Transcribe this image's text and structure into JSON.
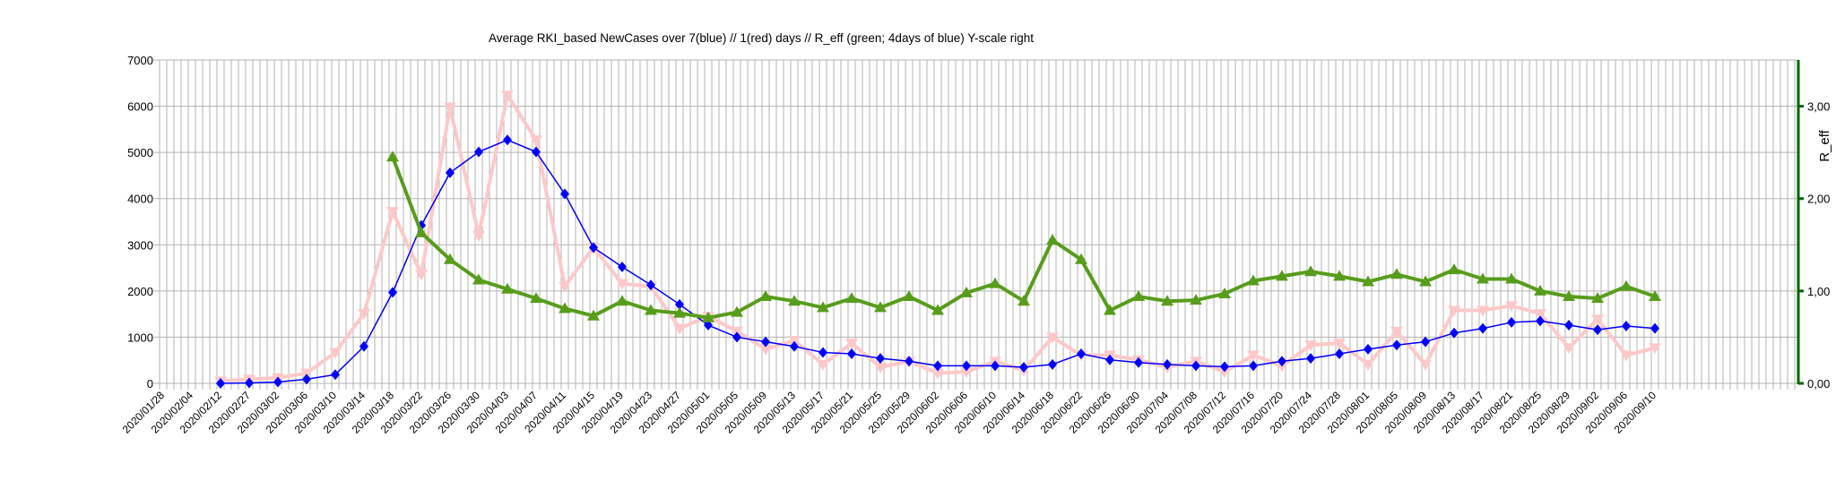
{
  "chart_data": {
    "type": "line",
    "title": "Average RKI_based NewCases over 7(blue) // 1(red) days //  R_eff (green; 4days of blue) Y-scale right",
    "xlabel": "",
    "ylabel": "",
    "y2label": "R_eff",
    "ylim": [
      0,
      7000
    ],
    "y2lim": [
      0,
      3.5
    ],
    "yticks": [
      "0",
      "1000",
      "2000",
      "3000",
      "4000",
      "5000",
      "6000",
      "7000"
    ],
    "y2ticks": [
      "0,00",
      "1,00",
      "2,00",
      "3,00"
    ],
    "grid": true,
    "legend": "none",
    "categories": [
      "2020/01/28",
      "2020/02/04",
      "2020/02/12",
      "2020/02/27",
      "2020/03/02",
      "2020/03/06",
      "2020/03/10",
      "2020/03/14",
      "2020/03/18",
      "2020/03/22",
      "2020/03/26",
      "2020/03/30",
      "2020/04/03",
      "2020/04/07",
      "2020/04/11",
      "2020/04/15",
      "2020/04/19",
      "2020/04/23",
      "2020/04/27",
      "2020/05/01",
      "2020/05/05",
      "2020/05/09",
      "2020/05/13",
      "2020/05/17",
      "2020/05/21",
      "2020/05/25",
      "2020/05/29",
      "2020/06/02",
      "2020/06/06",
      "2020/06/10",
      "2020/06/14",
      "2020/06/18",
      "2020/06/22",
      "2020/06/26",
      "2020/06/30",
      "2020/07/04",
      "2020/07/08",
      "2020/07/12",
      "2020/07/16",
      "2020/07/20",
      "2020/07/24",
      "2020/07/28",
      "2020/08/01",
      "2020/08/05",
      "2020/08/09",
      "2020/08/13",
      "2020/08/17",
      "2020/08/21",
      "2020/08/25",
      "2020/08/29",
      "2020/09/02",
      "2020/09/06",
      "2020/09/10"
    ],
    "series": [
      {
        "axis": "left",
        "color": "#ffc8c8",
        "marker": "triangle-down",
        "values": [
          null,
          null,
          50,
          90,
          120,
          220,
          670,
          1510,
          3720,
          2360,
          5980,
          3200,
          6240,
          5270,
          2100,
          2940,
          2160,
          2100,
          1190,
          1450,
          1130,
          740,
          930,
          410,
          870,
          350,
          480,
          220,
          250,
          480,
          280,
          1000,
          610,
          610,
          510,
          350,
          480,
          250,
          610,
          380,
          830,
          870,
          410,
          1130,
          410,
          1580,
          1580,
          1680,
          1510,
          770,
          1390,
          610,
          770
        ]
      },
      {
        "axis": "left",
        "color": "#0000ff",
        "marker": "diamond",
        "values": [
          null,
          null,
          0,
          10,
          30,
          90,
          190,
          800,
          1970,
          3420,
          4560,
          5010,
          5270,
          5010,
          4100,
          2940,
          2520,
          2130,
          1710,
          1260,
          1000,
          900,
          800,
          670,
          640,
          540,
          480,
          380,
          380,
          380,
          350,
          410,
          640,
          510,
          450,
          410,
          380,
          360,
          380,
          480,
          540,
          640,
          740,
          830,
          900,
          1090,
          1190,
          1320,
          1350,
          1260,
          1160,
          1240,
          1190
        ]
      },
      {
        "axis": "right",
        "color": "#579d1c",
        "marker": "triangle-up",
        "values": [
          null,
          null,
          null,
          null,
          null,
          null,
          null,
          null,
          2.45,
          1.63,
          1.34,
          1.12,
          1.02,
          0.92,
          0.81,
          0.73,
          0.89,
          0.79,
          0.76,
          0.71,
          0.77,
          0.94,
          0.89,
          0.82,
          0.92,
          0.82,
          0.94,
          0.79,
          0.98,
          1.08,
          0.89,
          1.55,
          1.34,
          0.79,
          0.94,
          0.89,
          0.9,
          0.97,
          1.11,
          1.16,
          1.21,
          1.16,
          1.1,
          1.18,
          1.1,
          1.23,
          1.13,
          1.13,
          1.0,
          0.94,
          0.92,
          1.05,
          0.94
        ]
      }
    ],
    "colors": {
      "grid": "#b3b3b3",
      "right_axis": "#006600"
    }
  }
}
